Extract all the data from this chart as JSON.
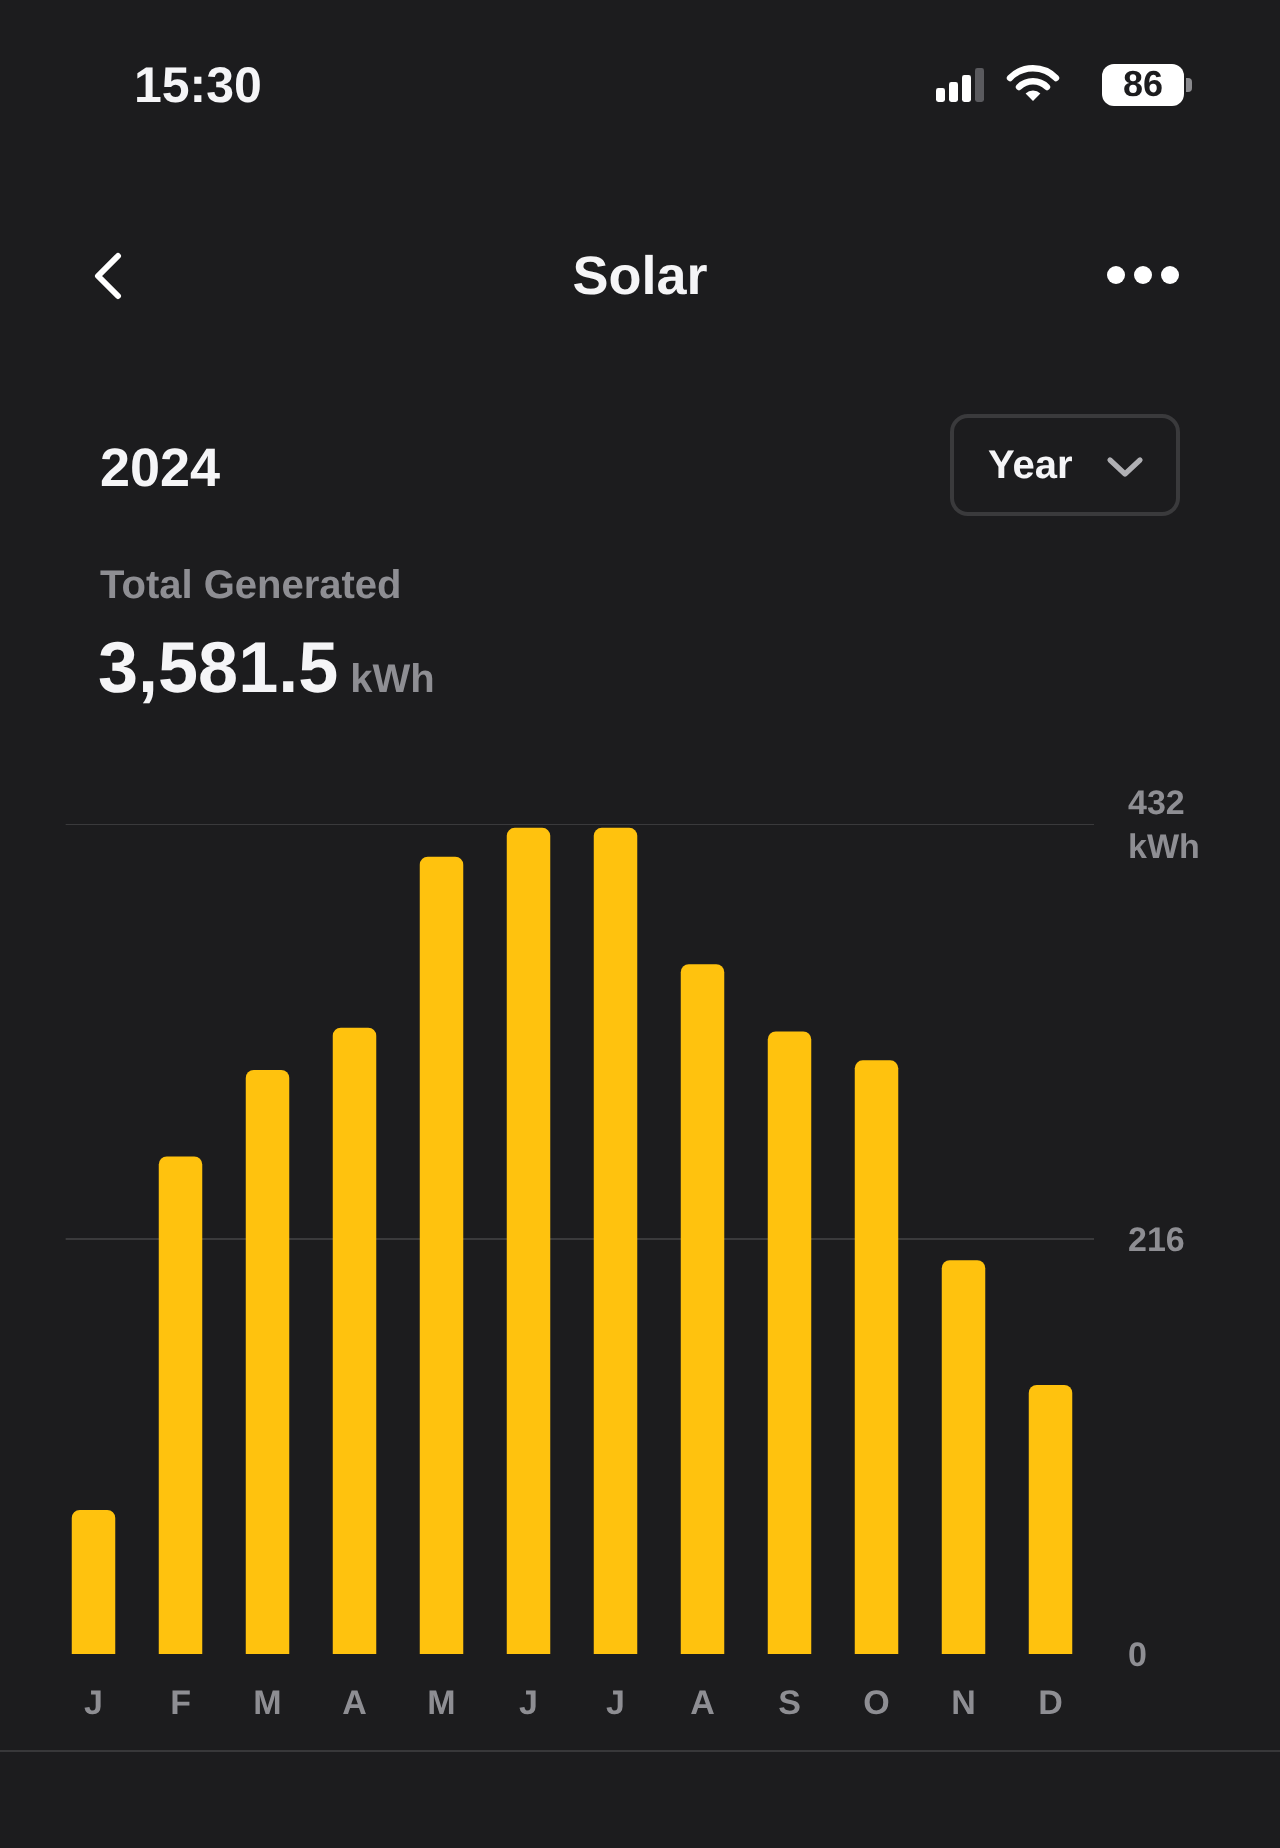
{
  "chart_data": {
    "type": "bar",
    "title": "Solar",
    "subtitle": "2024",
    "annotations": [
      "15:30",
      "86",
      "Year",
      "Total Generated",
      "3,581.5 kWh"
    ],
    "categories": [
      "J",
      "F",
      "M",
      "A",
      "M",
      "J",
      "J",
      "A",
      "S",
      "O",
      "N",
      "D"
    ],
    "values": [
      75,
      259,
      304,
      326,
      415,
      430,
      430,
      359,
      324,
      309,
      205,
      140
    ],
    "color": "#ffc20e",
    "ylim": [
      0,
      432
    ],
    "yticks": [
      0,
      216,
      {
        "value": 432,
        "label": "432 kWh"
      }
    ],
    "grid": "y"
  }
}
